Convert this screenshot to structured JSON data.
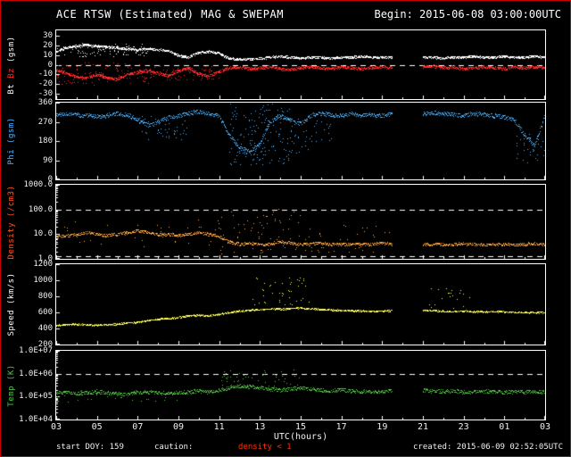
{
  "colors": {
    "background": "#000000",
    "frame_border": "#cc0000",
    "axis": "#ffffff",
    "bt": "#ffffff",
    "bz": "#ff2a2a",
    "phi": "#4fb3ff",
    "density": "#ffaa44",
    "speed": "#ffff55",
    "temp": "#55cc44",
    "caution_text": "#ff3300"
  },
  "chart_data": {
    "type": "scatter",
    "title": "ACE RTSW (Estimated) MAG & SWEPAM",
    "begin_label": "Begin: 2015-06-08 03:00:00UTC",
    "created_label": "created: 2015-06-09 02:52:05UTC",
    "start_doy_label": "start DOY: 159",
    "caution_label": "caution:",
    "caution_value": "density < 1",
    "x_axis": {
      "label": "UTC(hours)",
      "range_hours": [
        3,
        27
      ],
      "tick_labels": [
        "03",
        "05",
        "07",
        "09",
        "11",
        "13",
        "15",
        "17",
        "19",
        "21",
        "23",
        "01",
        "03"
      ]
    },
    "x_hours": [
      3,
      3.5,
      4,
      4.5,
      5,
      5.5,
      6,
      6.5,
      7,
      7.5,
      8,
      8.5,
      9,
      9.5,
      10,
      10.5,
      11,
      11.5,
      12,
      12.5,
      13,
      13.5,
      14,
      14.5,
      15,
      15.5,
      16,
      16.5,
      17,
      17.5,
      18,
      18.5,
      19,
      19.5,
      20,
      20.5,
      21,
      21.5,
      22,
      22.5,
      23,
      23.5,
      24,
      24.5,
      25,
      25.5,
      26,
      26.5,
      27
    ],
    "panels": [
      {
        "name": "bt-bz",
        "yscale": "linear",
        "ylim": [
          -36,
          36
        ],
        "ytick_values": [
          30,
          20,
          10,
          0,
          -10,
          -20,
          -30
        ],
        "ytick_labels": [
          "30",
          "20",
          "10",
          "0",
          "-10",
          "-20",
          "-30"
        ],
        "dashed": [
          0
        ],
        "ylabel_parts": [
          {
            "text": "Bt",
            "color": "#ffffff"
          },
          {
            "text": "Bz",
            "color": "#ff2a2a"
          },
          {
            "text": "(gsm)",
            "color": "#ffffff"
          }
        ],
        "series": [
          {
            "name": "Bt",
            "color": "#ffffff",
            "dots": 3,
            "jitter": 1.2,
            "y": [
              14,
              18,
              20,
              21,
              20,
              19,
              18,
              17,
              16,
              17,
              16,
              15,
              10,
              8,
              13,
              14,
              12,
              7,
              6,
              6,
              7,
              8,
              9,
              8,
              7,
              8,
              8,
              7,
              8,
              8,
              9,
              8,
              8,
              8,
              null,
              null,
              8,
              8,
              7,
              8,
              8,
              9,
              8,
              8,
              9,
              8,
              8,
              9,
              8
            ],
            "scatter": [
              {
                "x": [
                  3,
                  7.5
                ],
                "ylo": 9,
                "yhi": 23,
                "n": 100
              }
            ]
          },
          {
            "name": "Bz",
            "color": "#ff2a2a",
            "dots": 3,
            "jitter": 1.5,
            "y": [
              -5,
              -8,
              -12,
              -14,
              -10,
              -13,
              -15,
              -10,
              -8,
              -6,
              -9,
              -11,
              -6,
              -3,
              -9,
              -12,
              -7,
              -3,
              -2,
              -4,
              -3,
              -2,
              -4,
              -5,
              -3,
              -2,
              -3,
              -4,
              -2,
              -3,
              -4,
              -3,
              -2,
              -3,
              null,
              null,
              -2,
              -1,
              -3,
              -2,
              -4,
              -3,
              -2,
              -3,
              -4,
              -2,
              -3,
              -2,
              -3
            ],
            "scatter": [
              {
                "x": [
                  3,
                  7.5
                ],
                "ylo": -21,
                "yhi": 2,
                "n": 110
              },
              {
                "x": [
                  7.5,
                  11
                ],
                "ylo": -16,
                "yhi": -1,
                "n": 60
              }
            ]
          }
        ]
      },
      {
        "name": "phi",
        "yscale": "linear",
        "ylim": [
          0,
          360
        ],
        "ytick_values": [
          360,
          270,
          180,
          90,
          0
        ],
        "ytick_labels": [
          "360",
          "270",
          "180",
          "90",
          "0"
        ],
        "dashed": [],
        "ylabel_parts": [
          {
            "text": "Phi",
            "color": "#4fb3ff"
          },
          {
            "text": "(gsm)",
            "color": "#4fb3ff"
          }
        ],
        "series": [
          {
            "name": "Phi",
            "color": "#4fb3ff",
            "dots": 2,
            "jitter": 10,
            "y": [
              300,
              310,
              305,
              300,
              295,
              300,
              310,
              305,
              280,
              255,
              270,
              290,
              300,
              310,
              320,
              310,
              300,
              210,
              150,
              130,
              170,
              270,
              300,
              280,
              260,
              300,
              310,
              305,
              300,
              310,
              300,
              305,
              300,
              310,
              null,
              null,
              310,
              315,
              310,
              305,
              300,
              310,
              305,
              300,
              295,
              280,
              210,
              160,
              300
            ],
            "scatter": [
              {
                "x": [
                  11.5,
                  14.5
                ],
                "ylo": 70,
                "yhi": 360,
                "n": 160
              },
              {
                "x": [
                  7,
                  9.5
                ],
                "ylo": 180,
                "yhi": 300,
                "n": 50
              },
              {
                "x": [
                  14.5,
                  16.5
                ],
                "ylo": 120,
                "yhi": 300,
                "n": 40
              },
              {
                "x": [
                  25.5,
                  27
                ],
                "ylo": 80,
                "yhi": 220,
                "n": 35
              }
            ]
          }
        ]
      },
      {
        "name": "density",
        "yscale": "log",
        "ylim": [
          1,
          1000
        ],
        "ytick_values": [
          1000,
          100,
          10,
          1
        ],
        "ytick_labels": [
          "1000.0",
          "100.0",
          "10.0",
          "1.0"
        ],
        "dashed": [
          100,
          1
        ],
        "ylabel_parts": [
          {
            "text": "Density",
            "color": "#ff5522"
          },
          {
            "text": "(/cm3)",
            "color": "#ff5522"
          }
        ],
        "series": [
          {
            "name": "Density",
            "color": "#ffaa44",
            "dots": 2,
            "jitter": 0.06,
            "y": [
              8,
              9,
              10,
              12,
              10,
              9,
              10,
              12,
              14,
              12,
              10,
              10,
              9,
              10,
              12,
              10,
              8,
              5,
              4,
              4.5,
              4,
              4,
              5,
              4.5,
              4,
              4,
              4.5,
              4,
              4,
              4,
              4,
              4,
              4.5,
              4,
              null,
              null,
              4,
              4,
              3.8,
              4,
              4.2,
              4,
              3.8,
              4,
              4,
              3.8,
              4,
              4.2,
              4
            ],
            "scatter": [
              {
                "x": [
                  11,
                  15
                ],
                "ylo": 1.5,
                "yhi": 120,
                "n": 70
              },
              {
                "x": [
                  15,
                  19.5
                ],
                "ylo": 1.5,
                "yhi": 25,
                "n": 35
              },
              {
                "x": [
                  3,
                  11
                ],
                "ylo": 3,
                "yhi": 40,
                "n": 40
              }
            ]
          }
        ]
      },
      {
        "name": "speed",
        "yscale": "linear",
        "ylim": [
          200,
          1200
        ],
        "ytick_values": [
          1200,
          1000,
          800,
          600,
          400,
          200
        ],
        "ytick_labels": [
          "1200",
          "1000",
          "800",
          "600",
          "400",
          "200"
        ],
        "dashed": [],
        "ylabel_parts": [
          {
            "text": "Speed",
            "color": "#ffffff"
          },
          {
            "text": "(km/s)",
            "color": "#ffffff"
          }
        ],
        "series": [
          {
            "name": "Speed",
            "color": "#ffff55",
            "dots": 2,
            "jitter": 10,
            "y": [
              440,
              450,
              455,
              450,
              445,
              450,
              460,
              470,
              480,
              500,
              520,
              530,
              540,
              560,
              570,
              560,
              580,
              600,
              620,
              630,
              640,
              650,
              645,
              650,
              660,
              650,
              640,
              635,
              630,
              625,
              620,
              615,
              620,
              625,
              null,
              null,
              630,
              625,
              620,
              615,
              620,
              615,
              610,
              615,
              610,
              605,
              600,
              605,
              600
            ],
            "scatter": [
              {
                "x": [
                  12.5,
                  15.5
                ],
                "ylo": 660,
                "yhi": 1050,
                "n": 45
              },
              {
                "x": [
                  21,
                  23.5
                ],
                "ylo": 650,
                "yhi": 900,
                "n": 20
              }
            ]
          }
        ]
      },
      {
        "name": "temp",
        "yscale": "log",
        "ylim": [
          10000,
          10000000
        ],
        "ytick_values": [
          10000000,
          1000000,
          100000,
          10000
        ],
        "ytick_labels": [
          "1.0E+07",
          "1.0E+06",
          "1.0E+05",
          "1.0E+04"
        ],
        "dashed": [
          1000000
        ],
        "ylabel_parts": [
          {
            "text": "Temp",
            "color": "#44cc44"
          },
          {
            "text": "(K)",
            "color": "#44cc44"
          }
        ],
        "series": [
          {
            "name": "Temp",
            "color": "#55cc44",
            "dots": 2,
            "jitter": 0.08,
            "y": [
              150000,
              160000,
              140000,
              150000,
              170000,
              150000,
              140000,
              130000,
              150000,
              160000,
              150000,
              140000,
              150000,
              160000,
              180000,
              160000,
              200000,
              250000,
              300000,
              280000,
              250000,
              220000,
              200000,
              220000,
              250000,
              220000,
              200000,
              180000,
              200000,
              180000,
              170000,
              180000,
              170000,
              180000,
              null,
              null,
              200000,
              180000,
              170000,
              180000,
              160000,
              170000,
              180000,
              170000,
              160000,
              170000,
              160000,
              170000,
              160000
            ],
            "scatter": [
              {
                "x": [
                  11,
                  15
                ],
                "ylo": 250000,
                "yhi": 1500000,
                "n": 50
              },
              {
                "x": [
                  3,
                  9
                ],
                "ylo": 60000,
                "yhi": 200000,
                "n": 40
              }
            ]
          }
        ]
      }
    ]
  }
}
